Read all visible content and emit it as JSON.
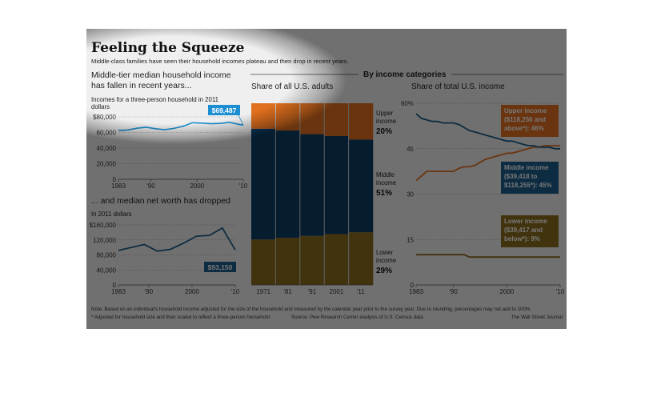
{
  "header": {
    "title": "Feeling the Squeeze",
    "subtitle": "Middle-class families have seen their household incomes plateau and then drop in recent years."
  },
  "chart_data": [
    {
      "type": "line",
      "title": "Middle-tier median household income has fallen in recent years...",
      "ylabel": "Incomes for a three-person household in 2011 dollars",
      "ylim": [
        0,
        80000
      ],
      "yticks": [
        "$80,000",
        "60,000",
        "40,000",
        "20,000",
        "0"
      ],
      "xticks": [
        "1983",
        "'90",
        "2000",
        "'10"
      ],
      "x": [
        1983,
        1985,
        1987,
        1989,
        1991,
        1993,
        1995,
        1997,
        1999,
        2001,
        2003,
        2005,
        2007,
        2009,
        2010
      ],
      "values": [
        62500,
        63200,
        65400,
        66800,
        64800,
        63500,
        65200,
        68000,
        72500,
        72000,
        71200,
        71600,
        73000,
        70500,
        69487
      ],
      "data_label": "$69,487",
      "color": "#1b8fd2"
    },
    {
      "type": "line",
      "title": "... and median net worth has dropped",
      "ylabel": "In 2011 dollars",
      "ylim": [
        0,
        160000
      ],
      "yticks": [
        "$160,000",
        "120,000",
        "80,000",
        "40,000",
        "0"
      ],
      "xticks": [
        "1983",
        "'90",
        "2000",
        "'10"
      ],
      "x": [
        1983,
        1989,
        1992,
        1995,
        1998,
        2001,
        2004,
        2007,
        2010
      ],
      "values": [
        92000,
        108000,
        90000,
        95000,
        111000,
        130000,
        132000,
        152000,
        93150
      ],
      "data_label": "$93,150",
      "color": "#1b5e8a"
    },
    {
      "type": "area",
      "title": "Share of all U.S. adults",
      "section_title": "By income categories",
      "x": [
        1971,
        1981,
        1991,
        2001,
        2011
      ],
      "xticks": [
        "1971",
        "'81",
        "'91",
        "2001",
        "'11"
      ],
      "series": [
        {
          "name": "Lower income",
          "values": [
            25,
            26,
            27,
            28,
            29
          ],
          "color": "#8a6d1e"
        },
        {
          "name": "Middle income",
          "values": [
            61,
            59,
            56,
            54,
            51
          ],
          "color": "#0d3d63"
        },
        {
          "name": "Upper income",
          "values": [
            14,
            15,
            17,
            18,
            20
          ],
          "color": "#e0701f"
        }
      ],
      "labels": [
        {
          "lines": [
            "Upper",
            "income"
          ],
          "value": "20%"
        },
        {
          "lines": [
            "Middle",
            "income"
          ],
          "value": "51%"
        },
        {
          "lines": [
            "Lower",
            "income"
          ],
          "value": "29%"
        }
      ]
    },
    {
      "type": "line",
      "title": "Share of total U.S. income",
      "ylim": [
        0,
        60
      ],
      "yticks": [
        "60%",
        "45",
        "30",
        "15",
        "0"
      ],
      "xticks": [
        "1983",
        "'90",
        "2000",
        "'10"
      ],
      "x": [
        1983,
        1984,
        1985,
        1986,
        1987,
        1988,
        1989,
        1990,
        1991,
        1992,
        1993,
        1994,
        1995,
        1996,
        1997,
        1998,
        1999,
        2000,
        2001,
        2002,
        2003,
        2004,
        2005,
        2006,
        2007,
        2008,
        2009,
        2010
      ],
      "series": [
        {
          "name": "Upper income",
          "values": [
            34.5,
            36,
            37.5,
            37.5,
            37.5,
            37.5,
            37.5,
            37.5,
            38.5,
            39,
            39,
            39.5,
            40.5,
            41.5,
            42,
            42.5,
            43,
            43.5,
            43.5,
            44,
            44.5,
            45,
            45.5,
            45.5,
            46,
            46,
            46,
            46
          ],
          "color": "#e0701f"
        },
        {
          "name": "Middle income",
          "values": [
            56.5,
            55,
            54.5,
            54,
            54,
            53.5,
            53.5,
            53.5,
            53,
            52,
            51,
            50.5,
            50,
            49.5,
            49,
            48.5,
            48,
            47.5,
            47.5,
            47,
            46.5,
            46,
            46,
            45.5,
            45.5,
            45.5,
            45,
            45
          ],
          "color": "#1b5e8a"
        },
        {
          "name": "Lower income",
          "values": [
            10,
            10,
            10,
            10,
            10,
            10,
            10,
            10,
            10,
            10,
            9.2,
            9.2,
            9.2,
            9.2,
            9.2,
            9.2,
            9.2,
            9.2,
            9.2,
            9.2,
            9.2,
            9.2,
            9.2,
            9.2,
            9.2,
            9.2,
            9.2,
            9.2
          ],
          "color": "#8a6d1e"
        }
      ],
      "labels": [
        {
          "lines": [
            "Upper income",
            "($118,256 and",
            "above*): 46%"
          ]
        },
        {
          "lines": [
            "Middle income",
            "($39,418 to",
            "$118,255*): 45%"
          ]
        },
        {
          "lines": [
            "Lower income",
            "($39,417 and",
            "below*): 9%"
          ]
        }
      ]
    }
  ],
  "footer": {
    "note": "Note: Based on an individual's household income adjusted for the size of the household and measured by the calendar year prior to the survey year. Due to rounding, percentages may not add to 100%.",
    "asterisk": "* Adjusted for household size and then scaled to reflect a three-person household",
    "source": "Source: Pew Research Center analysis of U.S. Census data",
    "credit": "The Wall Street Journal"
  }
}
